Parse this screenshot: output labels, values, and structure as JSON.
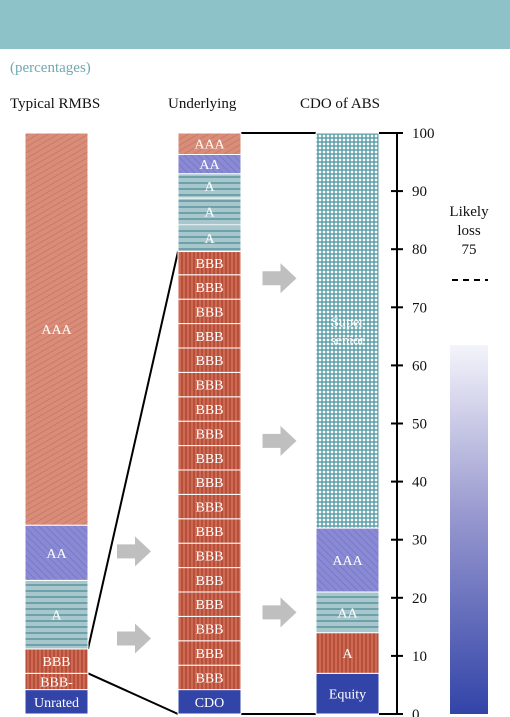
{
  "chart_data": {
    "type": "bar",
    "unit_label": "(percentages)",
    "columns": [
      {
        "title": "Typical RMBS",
        "segments": [
          {
            "label": "Unrated",
            "from": 0,
            "to": 4.2,
            "fill": "solid-blue"
          },
          {
            "label": "BBB-",
            "from": 4.2,
            "to": 7.0,
            "fill": "vertical-red"
          },
          {
            "label": "BBB",
            "from": 7.0,
            "to": 11.2,
            "fill": "vertical-red"
          },
          {
            "label": "A",
            "from": 11.2,
            "to": 23.0,
            "fill": "horizontal-teal"
          },
          {
            "label": "AA",
            "from": 23.0,
            "to": 32.5,
            "fill": "diagonal-blue"
          },
          {
            "label": "AAA",
            "from": 32.5,
            "to": 100,
            "fill": "diagonal-salmon"
          }
        ]
      },
      {
        "title": "Underlying",
        "segments": [
          {
            "label": "CDO",
            "from": 0,
            "to": 4.2,
            "fill": "solid-blue"
          },
          {
            "label": "BBB",
            "from": 4.2,
            "to": 8.4,
            "fill": "vertical-red"
          },
          {
            "label": "BBB",
            "from": 8.4,
            "to": 12.6,
            "fill": "vertical-red"
          },
          {
            "label": "BBB",
            "from": 12.6,
            "to": 16.8,
            "fill": "vertical-red"
          },
          {
            "label": "BBB",
            "from": 16.8,
            "to": 21.0,
            "fill": "vertical-red"
          },
          {
            "label": "BBB",
            "from": 21.0,
            "to": 25.2,
            "fill": "vertical-red"
          },
          {
            "label": "BBB",
            "from": 25.2,
            "to": 29.4,
            "fill": "vertical-red"
          },
          {
            "label": "BBB",
            "from": 29.4,
            "to": 33.6,
            "fill": "vertical-red"
          },
          {
            "label": "BBB",
            "from": 33.6,
            "to": 37.8,
            "fill": "vertical-red"
          },
          {
            "label": "BBB",
            "from": 37.8,
            "to": 42.0,
            "fill": "vertical-red"
          },
          {
            "label": "BBB",
            "from": 42.0,
            "to": 46.2,
            "fill": "vertical-red"
          },
          {
            "label": "BBB",
            "from": 46.2,
            "to": 50.4,
            "fill": "vertical-red"
          },
          {
            "label": "BBB",
            "from": 50.4,
            "to": 54.6,
            "fill": "vertical-red"
          },
          {
            "label": "BBB",
            "from": 54.6,
            "to": 58.8,
            "fill": "vertical-red"
          },
          {
            "label": "BBB",
            "from": 58.8,
            "to": 63.0,
            "fill": "vertical-red"
          },
          {
            "label": "BBB",
            "from": 63.0,
            "to": 67.2,
            "fill": "vertical-red"
          },
          {
            "label": "BBB",
            "from": 67.2,
            "to": 71.4,
            "fill": "vertical-red"
          },
          {
            "label": "BBB",
            "from": 71.4,
            "to": 75.6,
            "fill": "vertical-red"
          },
          {
            "label": "BBB",
            "from": 75.6,
            "to": 79.6,
            "fill": "vertical-red"
          },
          {
            "label": "A",
            "from": 79.6,
            "to": 84.2,
            "fill": "horizontal-teal"
          },
          {
            "label": "A",
            "from": 84.2,
            "to": 88.8,
            "fill": "horizontal-teal"
          },
          {
            "label": "A",
            "from": 88.8,
            "to": 93.0,
            "fill": "horizontal-teal"
          },
          {
            "label": "AA",
            "from": 93.0,
            "to": 96.3,
            "fill": "diagonal-blue"
          },
          {
            "label": "AAA",
            "from": 96.3,
            "to": 100,
            "fill": "diagonal-salmon"
          }
        ]
      },
      {
        "title": "CDO of ABS",
        "segments": [
          {
            "label": "Equity",
            "from": 0,
            "to": 7.0,
            "fill": "solid-blue"
          },
          {
            "label": "A",
            "from": 7.0,
            "to": 14.0,
            "fill": "vertical-red"
          },
          {
            "label": "AA",
            "from": 14.0,
            "to": 21.0,
            "fill": "horizontal-teal"
          },
          {
            "label": "AAA",
            "from": 21.0,
            "to": 32.0,
            "fill": "diagonal-blue"
          },
          {
            "label": "Super senior",
            "from": 32.0,
            "to": 100,
            "fill": "grid-teal"
          }
        ]
      }
    ],
    "y_axis": {
      "min": 0,
      "max": 100,
      "ticks": [
        0,
        10,
        20,
        30,
        40,
        50,
        60,
        70,
        80,
        90,
        100
      ]
    },
    "connectors": [
      {
        "from_column": 0,
        "from_levels": [
          7.0,
          11.2
        ],
        "to_column": 1,
        "to_levels": [
          0,
          79.6
        ]
      },
      {
        "from_column": 1,
        "from_levels": [
          0,
          100
        ],
        "to_column": 2,
        "to_levels": [
          0,
          100
        ]
      }
    ],
    "arrow_levels": [
      13,
      28,
      47,
      75
    ],
    "legend": {
      "lines": [
        "Likely",
        "loss",
        "75"
      ],
      "marker": "dashed-line",
      "scale": "gradient-blue"
    },
    "colors": {
      "header": "#8dc3c8",
      "unit_label": "#6fa9b0",
      "solid_blue": "#3244a8",
      "red": "#cf6a52",
      "salmon": "#d98d78",
      "periwinkle": "#8a8ad4",
      "teal": "#5a9fa8",
      "arrow": "#bfbfbf"
    }
  }
}
